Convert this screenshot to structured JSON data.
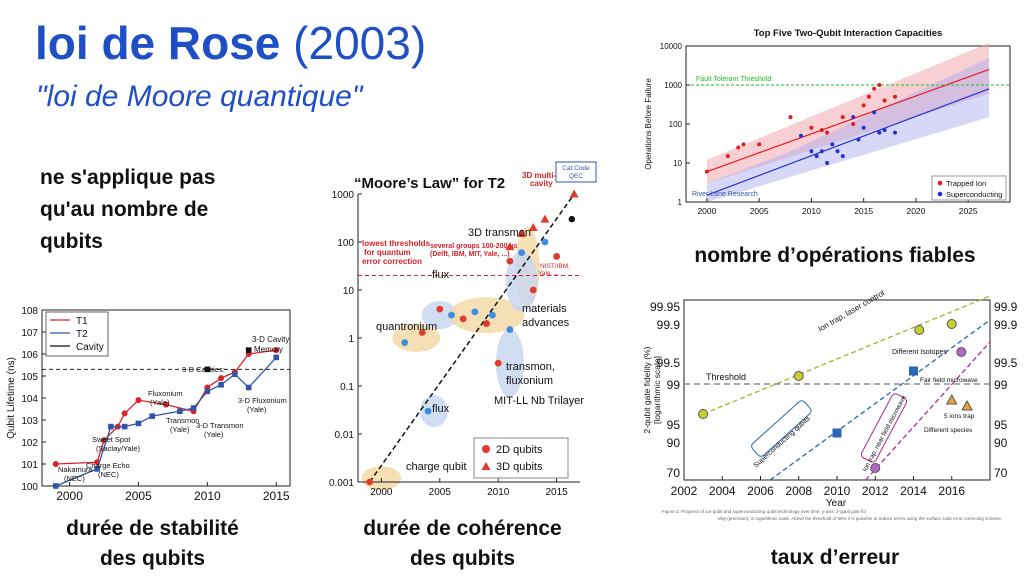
{
  "slide": {
    "title_main": "loi de Rose",
    "title_year": "(2003)",
    "subtitle": "\"loi de Moore quantique\"",
    "note_lines": [
      "ne s'applique pas",
      "qu'au nombre de",
      "qubits"
    ],
    "captions": {
      "stability_line1": "durée de stabilité",
      "stability_line2": "des qubits",
      "coherence_line1": "durée de cohérence",
      "coherence_line2": "des qubits",
      "operations": "nombre d’opérations fiables",
      "error": "taux d’erreur"
    }
  },
  "chart_data": [
    {
      "type": "line",
      "ylabel": "Qubit Lifetime (ns)",
      "yscale": "log",
      "ylim": [
        1,
        100000000
      ],
      "xlim": [
        1998,
        2016
      ],
      "xticks": [
        "2000",
        "2005",
        "2010",
        "2015"
      ],
      "yticks": [
        "10^0",
        "10^1",
        "10^2",
        "10^3",
        "10^4",
        "10^5",
        "10^6",
        "10^7",
        "10^8"
      ],
      "legend": [
        "T1",
        "T2",
        "Cavity"
      ],
      "annotations": [
        "3-D Cavity Memory",
        "3-D Cavities:",
        "Fluxonium (Yale)",
        "3-D Fluxonium (Yale)",
        "Transmon (Yale)",
        "3-D Transmon (Yale)",
        "Sweet Spot (Saclay/Yale)",
        "Charge Echo (NEC)",
        "Nakamura (NEC)"
      ],
      "series": [
        {
          "name": "T1",
          "color": "#d9232a",
          "x": [
            1999,
            2002,
            2002.5,
            2003.5,
            2004,
            2005,
            2007,
            2009,
            2010,
            2011,
            2012,
            2013,
            2015
          ],
          "y": [
            10,
            12,
            120,
            500,
            2000,
            8000,
            5000,
            2500,
            30000,
            80000,
            150000,
            1000000,
            1500000
          ]
        },
        {
          "name": "T2",
          "color": "#3355a8",
          "x": [
            1999,
            2002,
            2003,
            2004,
            2005,
            2006,
            2008,
            2009,
            2010,
            2011,
            2012,
            2013,
            2015
          ],
          "y": [
            1,
            6,
            500,
            500,
            700,
            1500,
            2500,
            3500,
            20000,
            40000,
            120000,
            30000,
            700000
          ]
        },
        {
          "name": "Cavity",
          "color": "#111111",
          "x": [
            2010,
            2013
          ],
          "y": [
            200000,
            1500000
          ]
        }
      ],
      "threshold": 200000
    },
    {
      "type": "scatter",
      "title": "“Moore’s Law” for T2",
      "yscale": "log",
      "ylim": [
        0.001,
        1000
      ],
      "xlim": [
        1998,
        2017
      ],
      "xticks": [
        "2000",
        "2005",
        "2010",
        "2015"
      ],
      "yticks": [
        "0.001",
        "0.01",
        "0.1",
        "1",
        "10",
        "100",
        "1000"
      ],
      "legend": [
        "2D qubits",
        "3D qubits"
      ],
      "annotations": [
        "3D multi-mode cavity",
        "Cat Code QEC",
        "3D transmon",
        "several groups 100-200 us",
        "(Delft, IBM, MIT, Yale, ...)",
        "lowest thresholds",
        "for quantum",
        "error correction",
        "NIST/IBM, Yale, ...",
        "flux",
        "quantronium",
        "materials",
        "advances",
        "transmon,",
        "fluxonium",
        "MIT-LL Nb Trilayer",
        "charge qubit"
      ],
      "points_2d": [
        [
          1999,
          0.001
        ],
        [
          2002,
          0.8
        ],
        [
          2003.5,
          1.3
        ],
        [
          2004,
          0.03
        ],
        [
          2005,
          4
        ],
        [
          2006,
          3
        ],
        [
          2007,
          2.5
        ],
        [
          2008,
          3.5
        ],
        [
          2009,
          2
        ],
        [
          2009.5,
          3
        ],
        [
          2010,
          0.3
        ],
        [
          2011,
          1.5
        ],
        [
          2011,
          40
        ],
        [
          2012,
          60
        ],
        [
          2013,
          10
        ],
        [
          2014,
          100
        ],
        [
          2015,
          50
        ]
      ],
      "points_3d": [
        [
          2011,
          80
        ],
        [
          2012,
          150
        ],
        [
          2013,
          200
        ],
        [
          2014,
          300
        ],
        [
          2016.5,
          1000
        ]
      ],
      "trend": [
        [
          1999,
          0.001
        ],
        [
          2016.5,
          1000
        ]
      ],
      "threshold": 20
    },
    {
      "type": "scatter",
      "title": "Top Five Two-Qubit Interaction Capacities",
      "ylabel": "Operations Before Failure",
      "yscale": "log",
      "ylim": [
        1,
        10000
      ],
      "xlim": [
        1998,
        2029
      ],
      "xticks": [
        "2000",
        "2005",
        "2010",
        "2015",
        "2020",
        "2025"
      ],
      "yticks": [
        "1",
        "10",
        "100",
        "1000",
        "10000"
      ],
      "legend": [
        "Trapped Ion",
        "Superconducting"
      ],
      "annotations": [
        "Fault Tolerant Threshold",
        "River Lane Research"
      ],
      "series": [
        {
          "name": "Trapped Ion",
          "color": "#e8191f",
          "x": [
            2000,
            2002,
            2003,
            2003.5,
            2005,
            2008,
            2010,
            2011,
            2011.5,
            2013,
            2014,
            2015,
            2015.5,
            2016,
            2016.5,
            2017,
            2018
          ],
          "y": [
            6,
            15,
            25,
            30,
            30,
            150,
            80,
            70,
            60,
            150,
            100,
            300,
            500,
            800,
            1000,
            400,
            500
          ]
        },
        {
          "name": "Superconducting",
          "color": "#2233cc",
          "x": [
            2009,
            2010,
            2010.5,
            2011,
            2011.5,
            2012,
            2012.5,
            2013,
            2014,
            2014.5,
            2015,
            2016,
            2016.5,
            2017,
            2018
          ],
          "y": [
            50,
            20,
            15,
            20,
            10,
            30,
            20,
            15,
            150,
            40,
            80,
            200,
            60,
            70,
            60
          ]
        }
      ],
      "threshold": 1000
    },
    {
      "type": "line",
      "xlabel": "Year",
      "ylabel": "2-qubit gate fidelity (%) [logarithmic scale]",
      "xlim": [
        2002,
        2018
      ],
      "xticks": [
        "2002",
        "2004",
        "2006",
        "2008",
        "2010",
        "2012",
        "2014",
        "2016"
      ],
      "yticks": [
        "70",
        "90",
        "95",
        "99",
        "99.5",
        "99.9",
        "99.95"
      ],
      "annotations": [
        "Threshold",
        "Ion trap, laser control",
        "Different Isotopes",
        "Fair field microwave",
        "5 ions trap",
        "Different species",
        "Superconducting qubits",
        "Ion trap, near field microwave"
      ],
      "caption": "Figure 3: Progress of ion-qubit and superconducting qubit technology over time. y-axis: 2-qubit gate fidelity (precision), in logarithmic scale. Above the threshold of 99% it is possible to reduce errors using the surface code error-correcting scheme."
    }
  ]
}
